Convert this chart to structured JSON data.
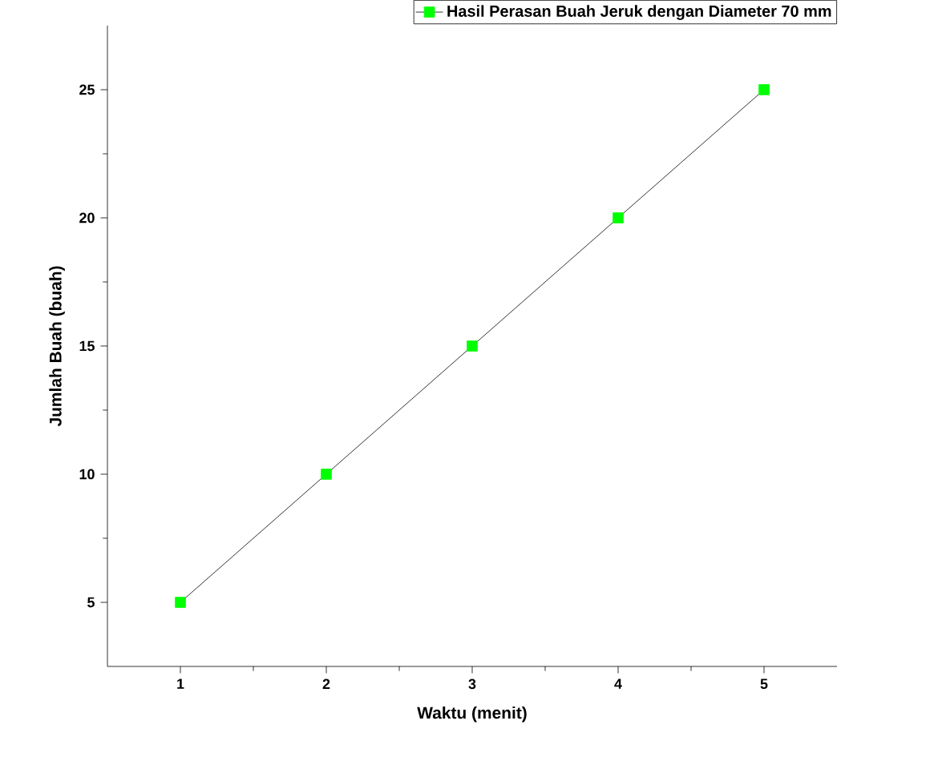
{
  "chart_data": {
    "type": "line",
    "xlabel": "Waktu (menit)",
    "ylabel": "Jumlah Buah (buah)",
    "x": [
      1,
      2,
      3,
      4,
      5
    ],
    "series": [
      {
        "name": "Hasil Perasan Buah Jeruk dengan Diameter 70 mm",
        "color": "#00ff00",
        "values": [
          5,
          10,
          15,
          20,
          25
        ]
      }
    ],
    "xlim": [
      0.5,
      5.5
    ],
    "ylim": [
      2.5,
      27.5
    ],
    "xticks": [
      1,
      2,
      3,
      4,
      5
    ],
    "yticks": [
      5,
      10,
      15,
      20,
      25
    ],
    "grid": false,
    "legend": "top right",
    "marker": "square",
    "line_style": "solid"
  }
}
